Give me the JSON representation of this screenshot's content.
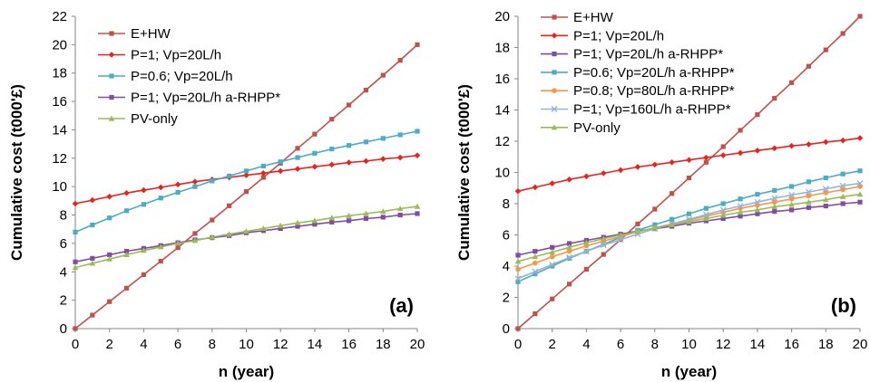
{
  "chart_data": [
    {
      "type": "line",
      "panel_label": "(a)",
      "xlabel": "n (year)",
      "ylabel": "Cumulative cost (t000'£)",
      "xlim": [
        0,
        20
      ],
      "ylim": [
        0,
        22
      ],
      "xticks": [
        "0",
        "2",
        "4",
        "6",
        "8",
        "10",
        "12",
        "14",
        "16",
        "18",
        "20"
      ],
      "yticks": [
        "0",
        "2",
        "4",
        "6",
        "8",
        "10",
        "12",
        "14",
        "16",
        "18",
        "20",
        "22"
      ],
      "grid": false,
      "legend_position": "top-left",
      "x": [
        0,
        1,
        2,
        3,
        4,
        5,
        6,
        7,
        8,
        9,
        10,
        11,
        12,
        13,
        14,
        15,
        16,
        17,
        18,
        19,
        20
      ],
      "series": [
        {
          "name": "E+HW",
          "color": "#c0504d",
          "marker": "square",
          "values": [
            0,
            0.95,
            1.9,
            2.85,
            3.8,
            4.75,
            5.7,
            6.7,
            7.65,
            8.65,
            9.65,
            10.65,
            11.65,
            12.7,
            13.7,
            14.75,
            15.75,
            16.8,
            17.85,
            18.9,
            20.0
          ]
        },
        {
          "name": "P=1; Vp=20L/h",
          "color": "#e8231e",
          "marker": "diamond",
          "values": [
            8.8,
            9.05,
            9.3,
            9.55,
            9.75,
            9.95,
            10.15,
            10.35,
            10.5,
            10.65,
            10.8,
            10.95,
            11.1,
            11.25,
            11.4,
            11.55,
            11.7,
            11.8,
            11.95,
            12.05,
            12.2
          ]
        },
        {
          "name": "P=0.6; Vp=20L/h",
          "color": "#4bacc6",
          "marker": "square",
          "values": [
            6.8,
            7.3,
            7.8,
            8.3,
            8.75,
            9.2,
            9.6,
            10.0,
            10.4,
            10.75,
            11.1,
            11.45,
            11.75,
            12.05,
            12.35,
            12.65,
            12.9,
            13.15,
            13.4,
            13.65,
            13.9
          ]
        },
        {
          "name": "P=1; Vp=20L/h a-RHPP*",
          "color": "#7f4ea3",
          "marker": "square",
          "values": [
            4.7,
            4.95,
            5.2,
            5.45,
            5.65,
            5.85,
            6.05,
            6.25,
            6.4,
            6.55,
            6.75,
            6.9,
            7.05,
            7.2,
            7.35,
            7.5,
            7.6,
            7.75,
            7.85,
            8.0,
            8.1
          ]
        },
        {
          "name": "PV-only",
          "color": "#9bbb59",
          "marker": "triangle",
          "values": [
            4.3,
            4.6,
            4.9,
            5.2,
            5.5,
            5.75,
            6.0,
            6.2,
            6.45,
            6.65,
            6.85,
            7.05,
            7.25,
            7.45,
            7.6,
            7.8,
            7.95,
            8.1,
            8.25,
            8.45,
            8.6
          ]
        }
      ]
    },
    {
      "type": "line",
      "panel_label": "(b)",
      "xlabel": "n (year)",
      "ylabel": "Cumulative cost (t000'£)",
      "xlim": [
        0,
        20
      ],
      "ylim": [
        0,
        20
      ],
      "xticks": [
        "0",
        "2",
        "4",
        "6",
        "8",
        "10",
        "12",
        "14",
        "16",
        "18",
        "20"
      ],
      "yticks": [
        "0",
        "2",
        "4",
        "6",
        "8",
        "10",
        "12",
        "14",
        "16",
        "18",
        "20"
      ],
      "grid": false,
      "legend_position": "top-left",
      "x": [
        0,
        1,
        2,
        3,
        4,
        5,
        6,
        7,
        8,
        9,
        10,
        11,
        12,
        13,
        14,
        15,
        16,
        17,
        18,
        19,
        20
      ],
      "series": [
        {
          "name": "E+HW",
          "color": "#c0504d",
          "marker": "square",
          "values": [
            0,
            0.95,
            1.9,
            2.85,
            3.8,
            4.75,
            5.7,
            6.7,
            7.65,
            8.65,
            9.65,
            10.65,
            11.65,
            12.7,
            13.7,
            14.75,
            15.75,
            16.8,
            17.85,
            18.9,
            20.0
          ]
        },
        {
          "name": "P=1; Vp=20L/h",
          "color": "#e8231e",
          "marker": "diamond",
          "values": [
            8.8,
            9.05,
            9.3,
            9.55,
            9.75,
            9.95,
            10.15,
            10.35,
            10.5,
            10.65,
            10.8,
            10.95,
            11.1,
            11.25,
            11.4,
            11.55,
            11.7,
            11.8,
            11.95,
            12.05,
            12.2
          ]
        },
        {
          "name": "P=1; Vp=20L/h a-RHPP*",
          "color": "#7f4ea3",
          "marker": "square",
          "values": [
            4.7,
            4.95,
            5.2,
            5.45,
            5.65,
            5.85,
            6.05,
            6.25,
            6.4,
            6.55,
            6.75,
            6.9,
            7.05,
            7.2,
            7.35,
            7.5,
            7.6,
            7.75,
            7.85,
            8.0,
            8.1
          ]
        },
        {
          "name": "P=0.6; Vp=20L/h a-RHPP*",
          "color": "#4bacc6",
          "marker": "square",
          "values": [
            3.0,
            3.5,
            4.0,
            4.5,
            4.95,
            5.4,
            5.85,
            6.3,
            6.65,
            7.0,
            7.35,
            7.7,
            8.0,
            8.3,
            8.6,
            8.85,
            9.1,
            9.4,
            9.65,
            9.9,
            10.1
          ]
        },
        {
          "name": "P=0.8; Vp=80L/h a-RHPP*",
          "color": "#f79646",
          "marker": "circle",
          "values": [
            3.8,
            4.2,
            4.6,
            4.95,
            5.3,
            5.6,
            5.9,
            6.2,
            6.45,
            6.7,
            6.95,
            7.2,
            7.45,
            7.7,
            7.9,
            8.1,
            8.3,
            8.5,
            8.7,
            8.9,
            9.1
          ]
        },
        {
          "name": "P=1; Vp=160L/h a-RHPP*",
          "color": "#95b3d7",
          "marker": "cross",
          "values": [
            3.2,
            3.65,
            4.1,
            4.55,
            4.95,
            5.35,
            5.7,
            6.05,
            6.4,
            6.7,
            7.0,
            7.3,
            7.6,
            7.85,
            8.1,
            8.35,
            8.55,
            8.75,
            8.95,
            9.15,
            9.3
          ]
        },
        {
          "name": "PV-only",
          "color": "#9bbb59",
          "marker": "triangle",
          "values": [
            4.3,
            4.6,
            4.9,
            5.2,
            5.5,
            5.75,
            6.0,
            6.2,
            6.45,
            6.65,
            6.85,
            7.05,
            7.25,
            7.45,
            7.6,
            7.8,
            7.95,
            8.1,
            8.25,
            8.45,
            8.6
          ]
        }
      ]
    }
  ]
}
